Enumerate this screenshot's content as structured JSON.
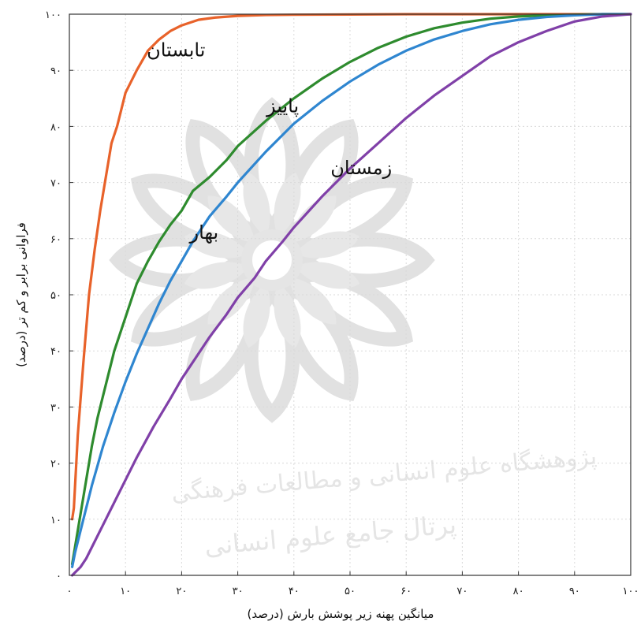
{
  "chart_data": {
    "type": "line",
    "xlabel": "میانگین پهنه زیر پوشش بارش (درصد)",
    "ylabel": "فراوانی برابر و کم تر (درصد)",
    "xlim": [
      0,
      100
    ],
    "ylim": [
      0,
      100
    ],
    "grid": true,
    "x_ticks": [
      0,
      10,
      20,
      30,
      40,
      50,
      60,
      70,
      80,
      90,
      100
    ],
    "x_tick_labels": [
      "۰",
      "۱۰",
      "۲۰",
      "۳۰",
      "۴۰",
      "۵۰",
      "۶۰",
      "۷۰",
      "۸۰",
      "۹۰",
      "۱۰۰"
    ],
    "y_ticks": [
      0,
      10,
      20,
      30,
      40,
      50,
      60,
      70,
      80,
      90,
      100
    ],
    "y_tick_labels": [
      "۰",
      "۱۰",
      "۲۰",
      "۳۰",
      "۴۰",
      "۵۰",
      "۶۰",
      "۷۰",
      "۸۰",
      "۹۰",
      "۱۰۰"
    ],
    "series": [
      {
        "name": "تابستان",
        "color": "#e8622a",
        "x": [
          0.5,
          0.8,
          1.5,
          2.5,
          3.5,
          4.5,
          5.5,
          6.5,
          7.5,
          8.5,
          10,
          12,
          14,
          16,
          18,
          20,
          23,
          26,
          30,
          35,
          40,
          50,
          60,
          70,
          80,
          90,
          100
        ],
        "y": [
          10,
          12,
          25,
          38,
          50,
          58,
          65,
          71,
          77,
          80,
          86,
          90,
          93.5,
          95.5,
          97,
          98,
          99,
          99.4,
          99.7,
          99.85,
          99.9,
          99.95,
          100,
          100,
          100,
          100,
          100
        ]
      },
      {
        "name": "پاییز",
        "color": "#2e8b2e",
        "x": [
          0.5,
          1,
          2,
          3,
          4,
          5,
          6,
          7,
          8,
          10,
          12,
          14,
          16,
          18,
          20,
          22,
          25,
          28,
          30,
          35,
          40,
          45,
          50,
          55,
          60,
          65,
          70,
          75,
          80,
          85,
          90,
          95,
          100
        ],
        "y": [
          2,
          5,
          11,
          17,
          23,
          28,
          32,
          36,
          40,
          46,
          52,
          56,
          59.5,
          62.5,
          65,
          68.5,
          71,
          74,
          76.5,
          81,
          85,
          88.5,
          91.5,
          94,
          96,
          97.5,
          98.5,
          99.2,
          99.6,
          99.8,
          99.9,
          100,
          100
        ]
      },
      {
        "name": "بهار",
        "color": "#2f86d0",
        "x": [
          0.5,
          1,
          2,
          3,
          4,
          5,
          6,
          8,
          10,
          12,
          14,
          16,
          18,
          20,
          22,
          25,
          28,
          30,
          35,
          40,
          45,
          50,
          55,
          60,
          65,
          70,
          75,
          80,
          85,
          90,
          95,
          100
        ],
        "y": [
          1.5,
          4,
          8,
          12,
          16,
          19.5,
          23,
          29,
          34.5,
          39.5,
          44,
          48.5,
          52.5,
          56,
          59.5,
          64,
          67.5,
          70,
          75.5,
          80.5,
          84.5,
          88,
          91,
          93.5,
          95.5,
          97,
          98.2,
          99,
          99.5,
          99.8,
          100,
          100
        ]
      },
      {
        "name": "زمستان",
        "color": "#8040a8",
        "x": [
          0.5,
          1,
          2,
          3,
          4,
          6,
          8,
          10,
          12,
          15,
          18,
          20,
          23,
          25,
          28,
          30,
          33,
          35,
          38,
          40,
          45,
          50,
          55,
          60,
          65,
          70,
          75,
          80,
          85,
          90,
          95,
          100
        ],
        "y": [
          0,
          0.5,
          1.5,
          3,
          5,
          9,
          13,
          17,
          21,
          26.5,
          31.5,
          35,
          39.5,
          42.5,
          46.5,
          49.5,
          53,
          56,
          59.5,
          62,
          67.5,
          72.5,
          77,
          81.5,
          85.5,
          89,
          92.5,
          95,
          97,
          98.7,
          99.6,
          100
        ]
      }
    ],
    "annotations": [
      {
        "series": "تابستان",
        "text": "تابستان",
        "x": 19,
        "y": 92.5
      },
      {
        "series": "پاییز",
        "text": "پاییز",
        "x": 38,
        "y": 82.5
      },
      {
        "series": "زمستان",
        "text": "زمستان",
        "x": 52,
        "y": 71.5
      },
      {
        "series": "بهار",
        "text": "بهار",
        "x": 24,
        "y": 60
      }
    ]
  },
  "watermark": {
    "line1": "پژوهشگاه علوم انسانی و مطالعات فرهنگی",
    "line2": "پرتال جامع علوم انسانی"
  }
}
